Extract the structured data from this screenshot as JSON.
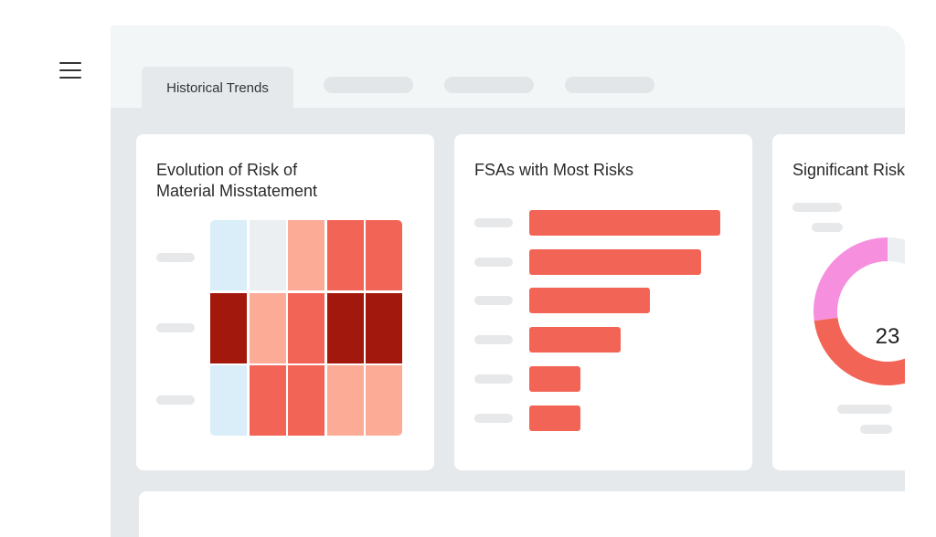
{
  "menu": {
    "icon": "hamburger-menu-icon"
  },
  "tabs": [
    {
      "label": "Historical Trends",
      "active": true
    }
  ],
  "cards": {
    "heatmap": {
      "title_line1": "Evolution of Risk of",
      "title_line2": "Material Misstatement"
    },
    "bars": {
      "title": "FSAs with Most Risks"
    },
    "donut": {
      "title": "Significant Risks",
      "center_value": "23"
    }
  },
  "colors": {
    "lightblue": "#d9eef8",
    "gray": "#ebeff1",
    "salmon": "#fbab96",
    "red": "#f26556",
    "darkred": "#a3180d",
    "pink": "#f78fdf"
  },
  "chart_data": [
    {
      "type": "heatmap",
      "rows": 3,
      "cols": 5,
      "levels": [
        [
          "lightblue",
          "gray",
          "salmon",
          "red",
          "red"
        ],
        [
          "darkred",
          "salmon",
          "red",
          "darkred",
          "darkred"
        ],
        [
          "lightblue",
          "red",
          "red",
          "salmon",
          "salmon"
        ]
      ]
    },
    {
      "type": "bar",
      "orientation": "horizontal",
      "values": [
        100,
        90,
        63,
        48,
        27,
        27
      ]
    },
    {
      "type": "pie",
      "donut": true,
      "segments": [
        {
          "color": "gray",
          "share": 0.25
        },
        {
          "color": "red",
          "share": 0.48
        },
        {
          "color": "pink",
          "share": 0.27
        }
      ]
    }
  ]
}
